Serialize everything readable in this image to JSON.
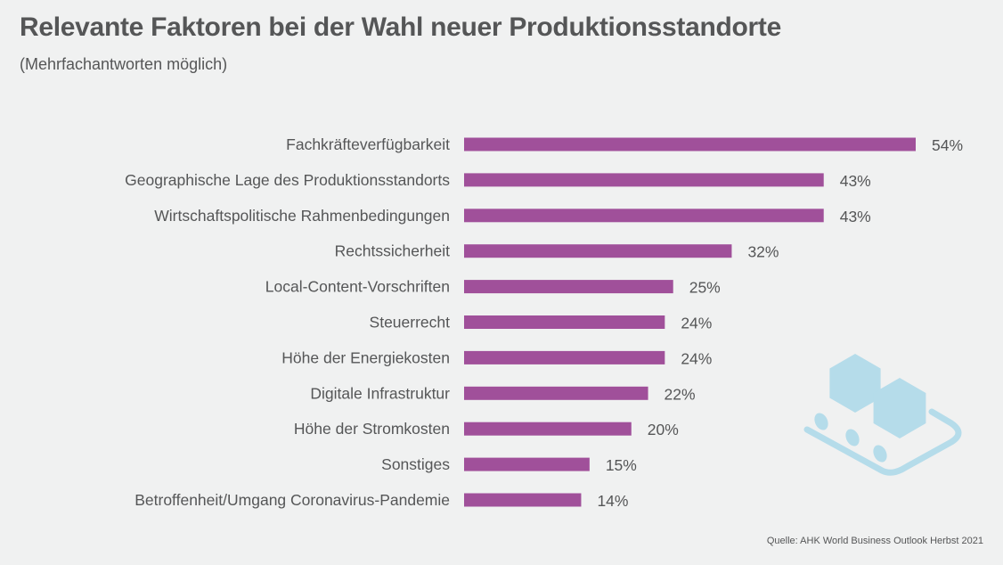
{
  "chart_data": {
    "type": "bar",
    "orientation": "horizontal",
    "title": "Relevante Faktoren bei der Wahl neuer Produktionsstandorte",
    "subtitle": "(Mehrfachantworten möglich)",
    "categories": [
      "Fachkräfteverfügbarkeit",
      "Geographische Lage des Produktionsstandorts",
      "Wirtschaftspolitische Rahmenbedingungen",
      "Rechtssicherheit",
      "Local-Content-Vorschriften",
      "Steuerrecht",
      "Höhe der Energiekosten",
      "Digitale Infrastruktur",
      "Höhe der Stromkosten",
      "Sonstiges",
      "Betroffenheit/Umgang Coronavirus-Pandemie"
    ],
    "values": [
      54,
      43,
      43,
      32,
      25,
      24,
      24,
      22,
      20,
      15,
      14
    ],
    "value_suffix": "%",
    "xlim": [
      0,
      54
    ],
    "grid": false,
    "bar_color": "#a0509a",
    "source": "Quelle: AHK World Business Outlook Herbst 2021",
    "decoration_icon": "conveyor-belt-hexagons-icon",
    "decoration_color": "#b5dcea"
  }
}
